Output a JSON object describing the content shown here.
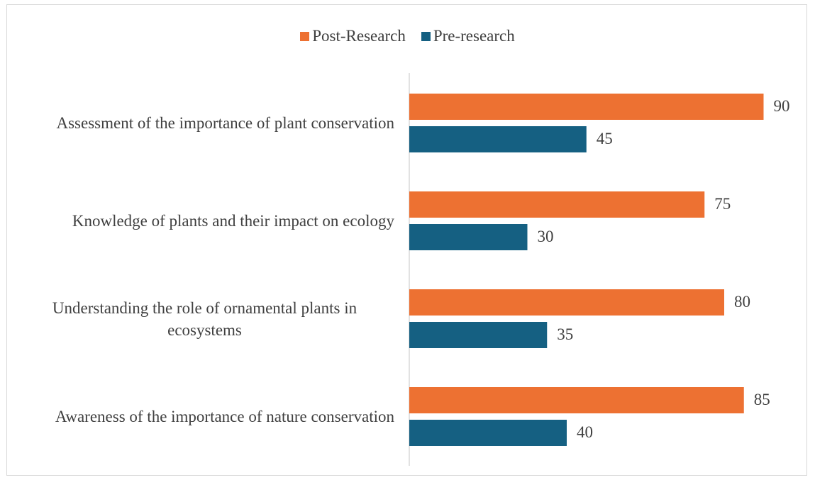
{
  "chart_data": {
    "type": "bar",
    "orientation": "horizontal",
    "categories": [
      "Assessment of the importance of plant conservation",
      "Knowledge of plants and their impact on ecology",
      "Understanding the role of ornamental plants in ecosystems",
      "Awareness of the importance of nature conservation"
    ],
    "series": [
      {
        "name": "Post-Research",
        "color": "#ed7132",
        "values": [
          90,
          75,
          80,
          85
        ]
      },
      {
        "name": "Pre-research",
        "color": "#156082",
        "values": [
          45,
          30,
          35,
          40
        ]
      }
    ],
    "xlim": [
      0,
      100
    ],
    "legend": "top"
  }
}
